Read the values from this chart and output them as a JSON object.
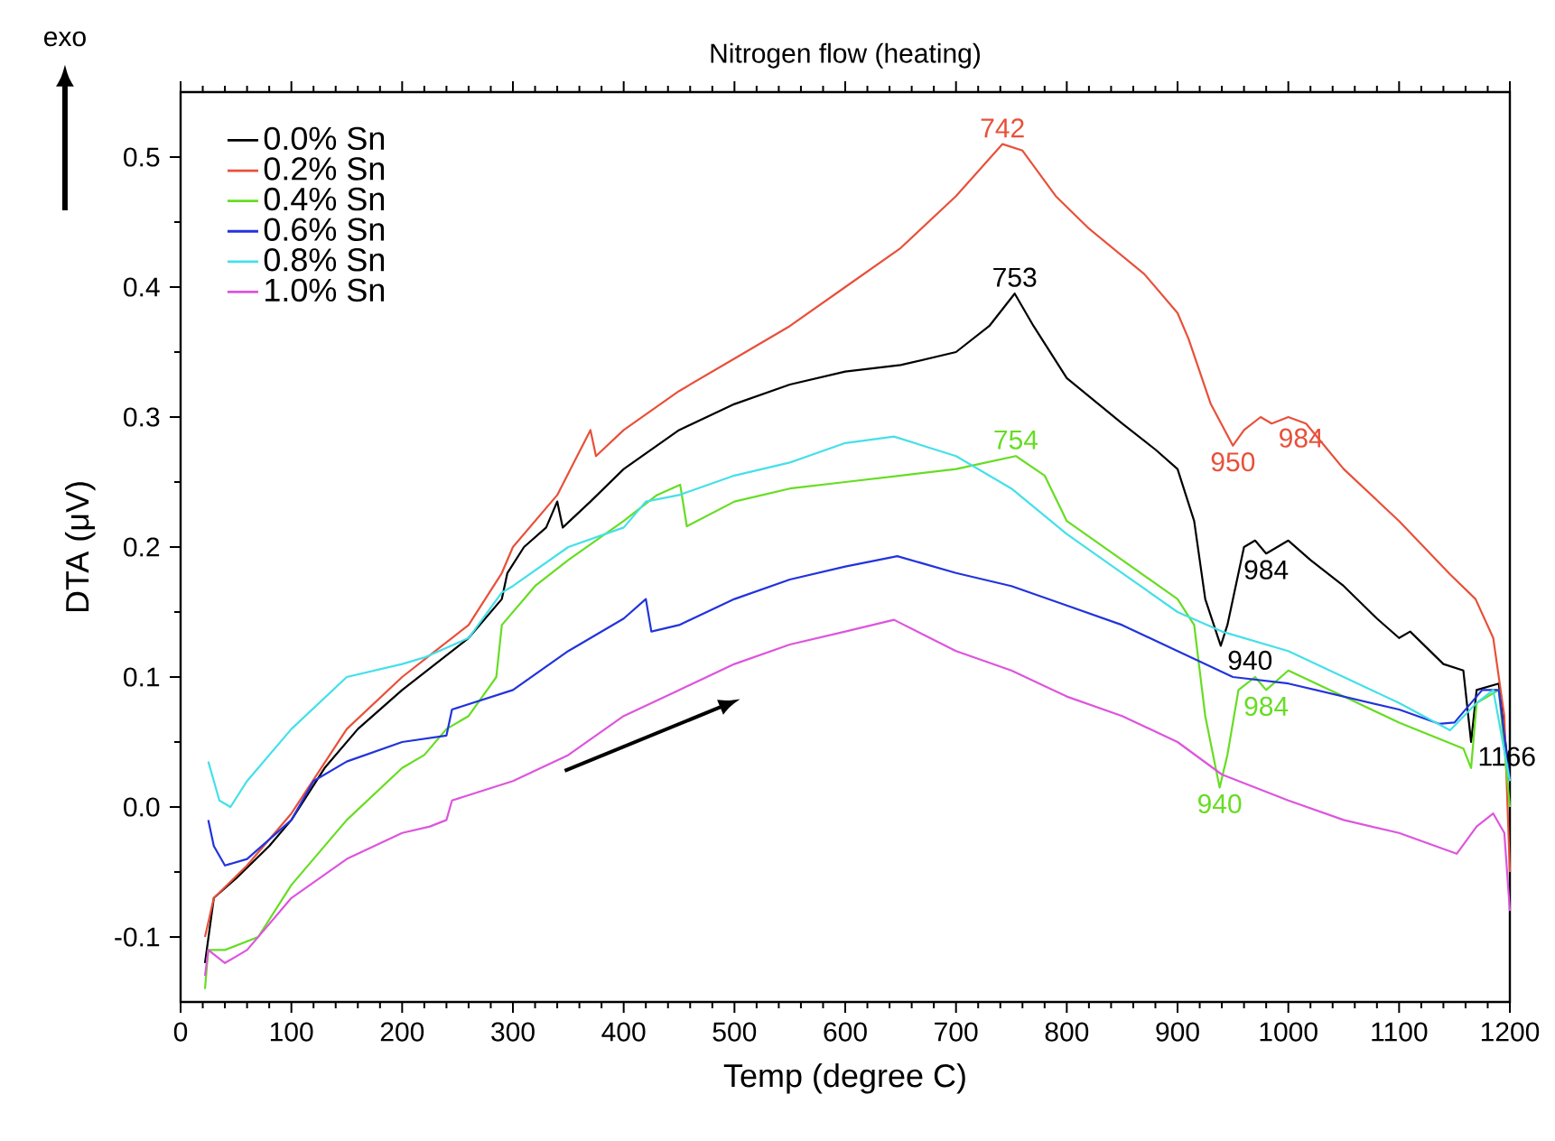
{
  "chart_data": {
    "type": "line",
    "title": "Nitrogen flow (heating)",
    "xlabel": "Temp (degree C)",
    "ylabel": "DTA (μV)",
    "xlim": [
      0,
      1200
    ],
    "ylim": [
      -0.15,
      0.55
    ],
    "xticks": [
      0,
      100,
      200,
      300,
      400,
      500,
      600,
      700,
      800,
      900,
      1000,
      1100,
      1200
    ],
    "yticks": [
      -0.1,
      {
        "value": 0,
        "label": "0.0"
      },
      0.1,
      0.2,
      0.3,
      0.4,
      0.5
    ],
    "legend": "top left",
    "grid": false,
    "series": [
      {
        "name": "0.0% Sn",
        "color": "#000000",
        "x": [
          22,
          30,
          50,
          80,
          100,
          130,
          160,
          200,
          230,
          260,
          280,
          290,
          295,
          310,
          330,
          340,
          345,
          370,
          400,
          450,
          500,
          550,
          600,
          650,
          700,
          730,
          753,
          770,
          800,
          850,
          880,
          900,
          915,
          925,
          939,
          945,
          960,
          970,
          980,
          1000,
          1020,
          1050,
          1080,
          1100,
          1110,
          1140,
          1158,
          1165,
          1170,
          1190,
          1200
        ],
        "values": [
          -0.12,
          -0.07,
          -0.055,
          -0.03,
          -0.01,
          0.03,
          0.06,
          0.09,
          0.11,
          0.13,
          0.15,
          0.16,
          0.18,
          0.2,
          0.215,
          0.235,
          0.215,
          0.235,
          0.26,
          0.29,
          0.31,
          0.325,
          0.335,
          0.34,
          0.35,
          0.37,
          0.395,
          0.37,
          0.33,
          0.295,
          0.275,
          0.26,
          0.22,
          0.16,
          0.124,
          0.14,
          0.2,
          0.205,
          0.195,
          0.205,
          0.19,
          0.17,
          0.145,
          0.13,
          0.135,
          0.11,
          0.105,
          0.05,
          0.09,
          0.095,
          0.02
        ]
      },
      {
        "name": "0.2% Sn",
        "color": "#e8503a",
        "x": [
          22,
          30,
          60,
          100,
          150,
          200,
          230,
          260,
          290,
          300,
          340,
          370,
          375,
          400,
          450,
          500,
          550,
          600,
          650,
          700,
          742,
          760,
          790,
          820,
          870,
          900,
          910,
          930,
          950,
          960,
          975,
          985,
          1000,
          1016,
          1050,
          1100,
          1146,
          1169,
          1185,
          1195,
          1200
        ],
        "values": [
          -0.1,
          -0.07,
          -0.045,
          -0.005,
          0.06,
          0.1,
          0.12,
          0.14,
          0.18,
          0.2,
          0.24,
          0.29,
          0.27,
          0.29,
          0.32,
          0.345,
          0.37,
          0.4,
          0.43,
          0.47,
          0.51,
          0.505,
          0.47,
          0.445,
          0.41,
          0.38,
          0.36,
          0.31,
          0.278,
          0.29,
          0.3,
          0.295,
          0.3,
          0.295,
          0.26,
          0.22,
          0.179,
          0.16,
          0.13,
          0.07,
          -0.05
        ]
      },
      {
        "name": "0.4% Sn",
        "color": "#66dd22",
        "x": [
          22,
          25,
          40,
          70,
          100,
          150,
          200,
          220,
          240,
          260,
          285,
          290,
          320,
          350,
          400,
          430,
          451,
          457,
          500,
          550,
          600,
          650,
          700,
          754,
          780,
          800,
          850,
          900,
          915,
          925,
          938,
          945,
          955,
          970,
          980,
          1000,
          1050,
          1100,
          1158,
          1165,
          1170,
          1190,
          1200
        ],
        "values": [
          -0.14,
          -0.11,
          -0.11,
          -0.1,
          -0.06,
          -0.01,
          0.03,
          0.04,
          0.06,
          0.07,
          0.1,
          0.14,
          0.17,
          0.19,
          0.22,
          0.24,
          0.248,
          0.216,
          0.235,
          0.245,
          0.25,
          0.255,
          0.26,
          0.27,
          0.255,
          0.22,
          0.19,
          0.16,
          0.14,
          0.07,
          0.015,
          0.04,
          0.09,
          0.1,
          0.09,
          0.105,
          0.085,
          0.065,
          0.045,
          0.03,
          0.08,
          0.09,
          0.0
        ]
      },
      {
        "name": "0.6% Sn",
        "color": "#2233dd",
        "x": [
          25,
          30,
          40,
          60,
          100,
          120,
          150,
          200,
          240,
          245,
          300,
          350,
          400,
          420,
          425,
          450,
          500,
          550,
          600,
          647,
          700,
          750,
          800,
          850,
          900,
          950,
          1000,
          1050,
          1100,
          1136,
          1150,
          1175,
          1190,
          1200
        ],
        "values": [
          -0.01,
          -0.03,
          -0.045,
          -0.04,
          -0.01,
          0.02,
          0.035,
          0.05,
          0.055,
          0.075,
          0.09,
          0.12,
          0.145,
          0.16,
          0.135,
          0.14,
          0.16,
          0.175,
          0.185,
          0.193,
          0.18,
          0.17,
          0.155,
          0.14,
          0.12,
          0.1,
          0.095,
          0.085,
          0.075,
          0.064,
          0.065,
          0.09,
          0.09,
          0.02
        ]
      },
      {
        "name": "0.8% Sn",
        "color": "#44e0e8",
        "x": [
          25,
          35,
          45,
          60,
          100,
          150,
          200,
          220,
          260,
          290,
          300,
          350,
          400,
          420,
          450,
          500,
          550,
          600,
          644,
          700,
          750,
          800,
          850,
          900,
          940,
          1000,
          1050,
          1100,
          1146,
          1170,
          1185,
          1200
        ],
        "values": [
          0.035,
          0.005,
          0.0,
          0.02,
          0.06,
          0.1,
          0.11,
          0.115,
          0.13,
          0.165,
          0.17,
          0.2,
          0.215,
          0.235,
          0.24,
          0.255,
          0.265,
          0.28,
          0.285,
          0.27,
          0.245,
          0.21,
          0.18,
          0.15,
          0.135,
          0.12,
          0.1,
          0.08,
          0.059,
          0.08,
          0.09,
          0.02
        ]
      },
      {
        "name": "1.0% Sn",
        "color": "#dd55dd",
        "x": [
          22,
          25,
          40,
          60,
          100,
          150,
          200,
          225,
          240,
          245,
          300,
          350,
          400,
          450,
          500,
          550,
          600,
          644,
          700,
          750,
          800,
          850,
          900,
          940,
          1000,
          1050,
          1100,
          1152,
          1170,
          1185,
          1195,
          1200
        ],
        "values": [
          -0.13,
          -0.11,
          -0.12,
          -0.11,
          -0.07,
          -0.04,
          -0.02,
          -0.015,
          -0.01,
          0.005,
          0.02,
          0.04,
          0.07,
          0.09,
          0.11,
          0.125,
          0.135,
          0.144,
          0.12,
          0.105,
          0.085,
          0.07,
          0.05,
          0.025,
          0.005,
          -0.01,
          -0.02,
          -0.036,
          -0.015,
          -0.005,
          -0.02,
          -0.08
        ]
      }
    ],
    "annotations": [
      "exo",
      {
        "text": "742",
        "x": 742,
        "y": 0.51
      },
      {
        "text": "753",
        "x": 753,
        "y": 0.395
      },
      {
        "text": "754",
        "x": 754,
        "y": 0.27
      },
      {
        "text": "950",
        "x": 950,
        "y": 0.278
      },
      {
        "text": "984",
        "x": 985,
        "y": 0.295
      },
      {
        "text": "984",
        "x": 980,
        "y": 0.195
      },
      {
        "text": "940",
        "x": 939,
        "y": 0.124
      },
      {
        "text": "984",
        "x": 980,
        "y": 0.09
      },
      {
        "text": "940",
        "x": 938,
        "y": 0.015
      },
      {
        "text": "1166",
        "x": 1165,
        "y": 0.05
      }
    ]
  }
}
